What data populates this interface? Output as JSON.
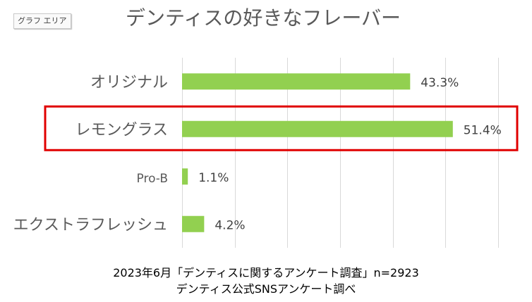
{
  "chart_area_label": "グラフ エリア",
  "chart_data": {
    "type": "bar",
    "orientation": "horizontal",
    "title": "デンティスの好きなフレーバー",
    "categories": [
      "オリジナル",
      "レモングラス",
      "Pro-B",
      "エクストラフレッシュ"
    ],
    "values": [
      43.3,
      51.4,
      1.1,
      4.2
    ],
    "data_labels": [
      "43.3%",
      "51.4%",
      "1.1%",
      "4.2%"
    ],
    "xlim": [
      0,
      60
    ],
    "grid": true,
    "highlighted_category": "レモングラス",
    "colors": {
      "bar": "#92d050",
      "highlight": "#e00000",
      "grid": "#d9d9d9"
    }
  },
  "footer": {
    "line1": "2023年6月「デンティスに関するアンケート調査」n=2923",
    "line2": "デンティス公式SNSアンケート調べ"
  }
}
